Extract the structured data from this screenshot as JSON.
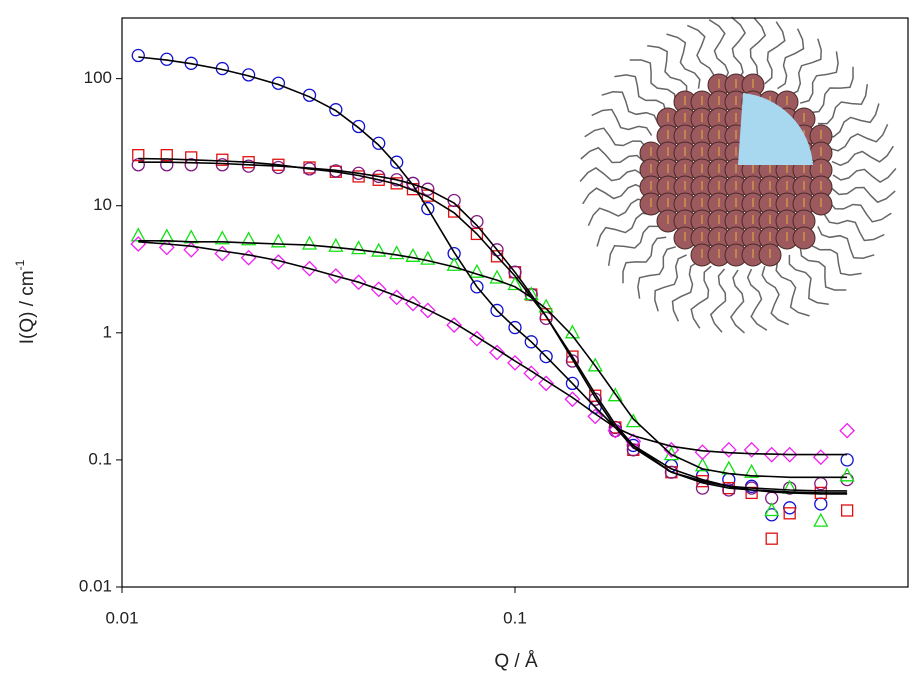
{
  "chart_data": {
    "type": "scatter",
    "xlabel": "Q / Å",
    "ylabel": {
      "text": "I(Q) / cm",
      "superscript": "-1"
    },
    "xscale": "log",
    "yscale": "log",
    "xlim": [
      0.01,
      1
    ],
    "ylim": [
      0.01,
      300
    ],
    "xticks": [
      0.01,
      0.1
    ],
    "yticks": [
      0.01,
      0.1,
      1,
      10,
      100
    ],
    "x": [
      0.011,
      0.013,
      0.015,
      0.018,
      0.021,
      0.025,
      0.03,
      0.035,
      0.04,
      0.045,
      0.05,
      0.055,
      0.06,
      0.07,
      0.08,
      0.09,
      0.1,
      0.11,
      0.12,
      0.14,
      0.16,
      0.18,
      0.2,
      0.25,
      0.3,
      0.35,
      0.4,
      0.45,
      0.5,
      0.6,
      0.7
    ],
    "series": [
      {
        "color": "#1010d0",
        "marker": "circle",
        "values": [
          152,
          142,
          132,
          120,
          107,
          92,
          74,
          57,
          42,
          31,
          22,
          15,
          9.5,
          4.2,
          2.3,
          1.5,
          1.1,
          0.85,
          0.65,
          0.4,
          0.26,
          0.18,
          0.13,
          0.09,
          0.075,
          0.07,
          0.062,
          0.037,
          0.042,
          0.045,
          0.1
        ],
        "fit": [
          148,
          140,
          131,
          118,
          105,
          90,
          72,
          56,
          41,
          30,
          21,
          14.5,
          9.5,
          4.3,
          2.3,
          1.5,
          1.1,
          0.85,
          0.65,
          0.4,
          0.26,
          0.18,
          0.13,
          0.085,
          0.07,
          0.062,
          0.058,
          0.056,
          0.055,
          0.054,
          0.054
        ]
      },
      {
        "color": "#e01010",
        "marker": "square",
        "values": [
          25,
          25,
          24,
          23,
          22,
          21,
          20,
          18.5,
          17,
          16,
          15,
          13.5,
          12,
          9,
          6,
          4,
          3,
          2,
          1.4,
          0.65,
          0.32,
          0.18,
          0.12,
          0.08,
          0.068,
          0.06,
          0.055,
          0.024,
          0.038,
          0.055,
          0.04
        ],
        "fit": [
          23.5,
          23.3,
          23,
          22.5,
          22,
          21,
          19.5,
          18.5,
          17.3,
          16,
          14.8,
          13.2,
          11.8,
          8.8,
          6,
          4,
          2.8,
          1.9,
          1.35,
          0.65,
          0.33,
          0.19,
          0.13,
          0.08,
          0.066,
          0.06,
          0.058,
          0.057,
          0.056,
          0.055,
          0.055
        ]
      },
      {
        "color": "#801880",
        "marker": "circle",
        "values": [
          21,
          21,
          21,
          21,
          20.5,
          20,
          19.5,
          18.8,
          18,
          17,
          16,
          15,
          13.5,
          11,
          7.5,
          4.5,
          3,
          2,
          1.3,
          0.6,
          0.3,
          0.17,
          0.12,
          0.08,
          0.06,
          0.058,
          0.06,
          0.05,
          0.06,
          0.065,
          0.07
        ],
        "fit": [
          22,
          22,
          21.8,
          21.5,
          21,
          20.5,
          19.8,
          19,
          18,
          17,
          16,
          14.8,
          13.5,
          10.5,
          7,
          4.5,
          3,
          2,
          1.35,
          0.62,
          0.31,
          0.18,
          0.125,
          0.08,
          0.068,
          0.062,
          0.06,
          0.059,
          0.058,
          0.057,
          0.057
        ]
      },
      {
        "color": "#10e010",
        "marker": "triangle",
        "values": [
          5.8,
          5.7,
          5.6,
          5.5,
          5.4,
          5.2,
          5,
          4.8,
          4.6,
          4.4,
          4.2,
          4,
          3.8,
          3.4,
          3,
          2.7,
          2.4,
          2,
          1.6,
          1,
          0.55,
          0.32,
          0.2,
          0.11,
          0.09,
          0.085,
          0.08,
          0.04,
          0.06,
          0.033,
          0.075
        ],
        "fit": [
          5.3,
          5.3,
          5.2,
          5.2,
          5.1,
          5,
          4.9,
          4.7,
          4.5,
          4.3,
          4.1,
          3.9,
          3.7,
          3.3,
          2.9,
          2.6,
          2.3,
          1.9,
          1.55,
          0.95,
          0.55,
          0.33,
          0.21,
          0.11,
          0.085,
          0.078,
          0.075,
          0.074,
          0.073,
          0.073,
          0.073
        ]
      },
      {
        "color": "#f020f0",
        "marker": "diamond",
        "values": [
          5,
          4.7,
          4.5,
          4.2,
          3.9,
          3.6,
          3.2,
          2.8,
          2.5,
          2.2,
          1.9,
          1.7,
          1.5,
          1.15,
          0.9,
          0.7,
          0.58,
          0.48,
          0.4,
          0.3,
          0.22,
          0.17,
          0.14,
          0.12,
          0.115,
          0.12,
          0.12,
          0.11,
          0.11,
          0.105,
          0.17
        ],
        "fit": [
          5.2,
          5,
          4.8,
          4.4,
          4.1,
          3.7,
          3.2,
          2.8,
          2.5,
          2.2,
          1.95,
          1.72,
          1.52,
          1.2,
          0.93,
          0.74,
          0.6,
          0.5,
          0.42,
          0.31,
          0.23,
          0.18,
          0.155,
          0.128,
          0.118,
          0.114,
          0.112,
          0.111,
          0.11,
          0.11,
          0.11
        ]
      }
    ],
    "fit_color": "#000000"
  }
}
